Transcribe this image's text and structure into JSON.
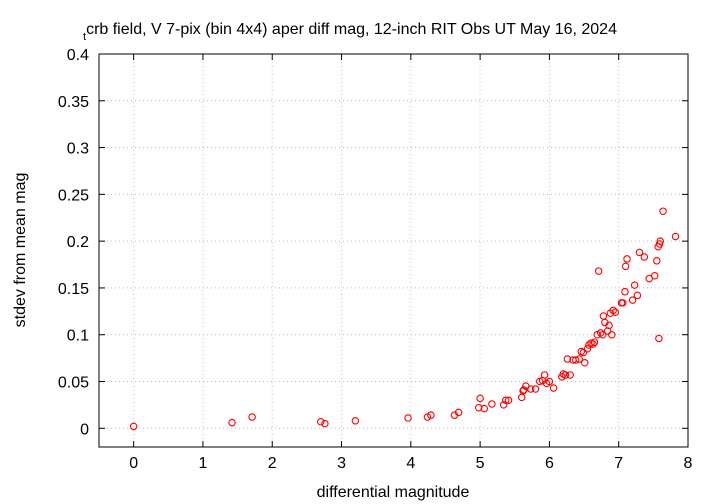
{
  "chart_data": {
    "type": "scatter",
    "title_subscript": "t",
    "title": "crb field, V 7-pix (bin 4x4) aper diff mag,  12-inch RIT Obs UT May 16, 2024",
    "xlabel": "differential magnitude",
    "ylabel": "stdev from mean mag",
    "xlim": [
      -0.5,
      8
    ],
    "ylim": [
      -0.02,
      0.4
    ],
    "xticks": [
      0,
      1,
      2,
      3,
      4,
      5,
      6,
      7,
      8
    ],
    "xtick_labels": [
      "0",
      "1",
      "2",
      "3",
      "4",
      "5",
      "6",
      "7",
      "8"
    ],
    "yticks": [
      0,
      0.05,
      0.1,
      0.15,
      0.2,
      0.25,
      0.3,
      0.35,
      0.4
    ],
    "ytick_labels": [
      "0",
      "0.05",
      "0.1",
      "0.15",
      "0.2",
      "0.25",
      "0.3",
      "0.35",
      "0.4"
    ],
    "grid": true,
    "legend": "none",
    "marker_color": "#ff0000",
    "series": [
      {
        "x": [
          0.0,
          1.42,
          1.71,
          2.7,
          2.76,
          3.2,
          3.96,
          4.24,
          4.29,
          4.63,
          4.69,
          4.98,
          5.0,
          5.06,
          5.17,
          5.34,
          5.37,
          5.41,
          5.6,
          5.62,
          5.63,
          5.66,
          5.73,
          5.8,
          5.86,
          5.9,
          5.93,
          5.96,
          6.0,
          6.06,
          6.18,
          6.2,
          6.23,
          6.26,
          6.3,
          6.34,
          6.38,
          6.43,
          6.46,
          6.49,
          6.51,
          6.55,
          6.57,
          6.6,
          6.63,
          6.65,
          6.69,
          6.71,
          6.74,
          6.77,
          6.78,
          6.8,
          6.84,
          6.86,
          6.88,
          6.9,
          6.92,
          6.95,
          7.04,
          7.06,
          7.09,
          7.1,
          7.12,
          7.2,
          7.23,
          7.27,
          7.3,
          7.37,
          7.44,
          7.52,
          7.55,
          7.57,
          7.59,
          7.6,
          7.64,
          7.82
        ],
        "y": [
          0.002,
          0.006,
          0.012,
          0.007,
          0.005,
          0.008,
          0.011,
          0.012,
          0.014,
          0.014,
          0.017,
          0.022,
          0.032,
          0.021,
          0.026,
          0.025,
          0.03,
          0.03,
          0.033,
          0.04,
          0.041,
          0.045,
          0.042,
          0.042,
          0.05,
          0.051,
          0.057,
          0.048,
          0.05,
          0.043,
          0.055,
          0.058,
          0.057,
          0.074,
          0.057,
          0.073,
          0.073,
          0.074,
          0.082,
          0.081,
          0.07,
          0.085,
          0.089,
          0.091,
          0.09,
          0.092,
          0.1,
          0.168,
          0.102,
          0.1,
          0.12,
          0.113,
          0.104,
          0.11,
          0.123,
          0.1,
          0.126,
          0.124,
          0.134,
          0.134,
          0.146,
          0.173,
          0.181,
          0.137,
          0.153,
          0.142,
          0.188,
          0.183,
          0.16,
          0.163,
          0.179,
          0.194,
          0.197,
          0.2,
          0.232,
          0.205
        ]
      },
      {
        "x": [
          7.58
        ],
        "y": [
          0.096
        ]
      }
    ]
  }
}
